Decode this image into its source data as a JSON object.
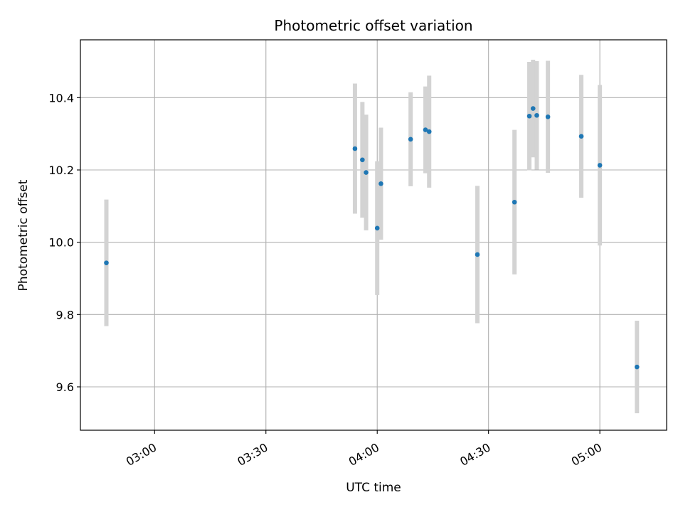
{
  "chart_data": {
    "type": "scatter",
    "title": "Photometric offset variation",
    "xlabel": "UTC time",
    "ylabel": "Photometric offset",
    "x_ticks": [
      "03:00",
      "03:30",
      "04:00",
      "04:30",
      "05:00"
    ],
    "x_tick_values": [
      "03:00",
      "03:30",
      "04:00",
      "04:30",
      "05:00"
    ],
    "y_ticks": [
      "9.6",
      "9.8",
      "10.0",
      "10.2",
      "10.4"
    ],
    "y_tick_values": [
      9.6,
      9.8,
      10.0,
      10.2,
      10.4
    ],
    "xlim": [
      "02:40",
      "05:18"
    ],
    "ylim": [
      9.48,
      10.56
    ],
    "grid": true,
    "legend": "none",
    "colors": {
      "marker": "#1f77b4",
      "errorbar": "#d3d3d3",
      "grid": "#b0b0b0",
      "axes": "#000000"
    },
    "points": [
      {
        "x": "02:47",
        "y": 9.943,
        "yerr": 0.175
      },
      {
        "x": "03:54",
        "y": 10.259,
        "yerr": 0.18
      },
      {
        "x": "03:56",
        "y": 10.228,
        "yerr": 0.16
      },
      {
        "x": "03:57",
        "y": 10.193,
        "yerr": 0.16
      },
      {
        "x": "04:00",
        "y": 10.039,
        "yerr": 0.185
      },
      {
        "x": "04:01",
        "y": 10.162,
        "yerr": 0.155
      },
      {
        "x": "04:09",
        "y": 10.285,
        "yerr": 0.13
      },
      {
        "x": "04:13",
        "y": 10.311,
        "yerr": 0.12
      },
      {
        "x": "04:14",
        "y": 10.306,
        "yerr": 0.155
      },
      {
        "x": "04:27",
        "y": 9.966,
        "yerr": 0.19
      },
      {
        "x": "04:37",
        "y": 10.111,
        "yerr": 0.2
      },
      {
        "x": "04:41",
        "y": 10.349,
        "yerr": 0.15
      },
      {
        "x": "04:42",
        "y": 10.37,
        "yerr": 0.135
      },
      {
        "x": "04:43",
        "y": 10.351,
        "yerr": 0.15
      },
      {
        "x": "04:46",
        "y": 10.347,
        "yerr": 0.155
      },
      {
        "x": "04:55",
        "y": 10.293,
        "yerr": 0.17
      },
      {
        "x": "05:00",
        "y": 10.213,
        "yerr": 0.222
      },
      {
        "x": "05:10",
        "y": 9.655,
        "yerr": 0.128
      }
    ]
  }
}
